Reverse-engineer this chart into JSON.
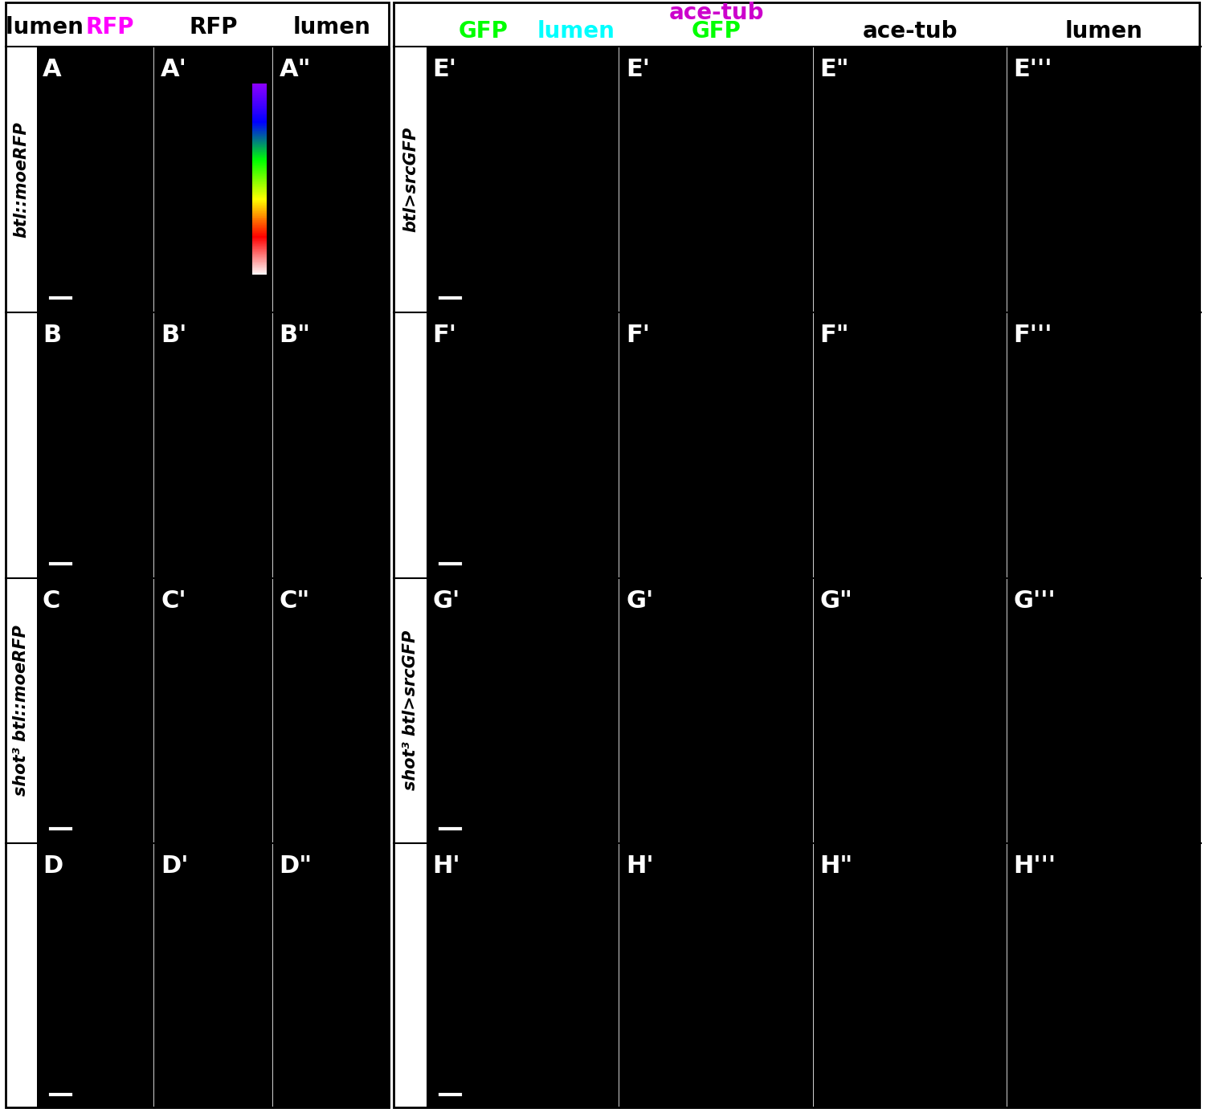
{
  "title": "",
  "background_color": "#ffffff",
  "panel_bg": "#000000",
  "border_color": "#000000",
  "label_fontsize": 18,
  "header_fontsize": 20,
  "panel_label_fontsize": 22,
  "left_col_headers": [
    "lumen RFP",
    "RFP",
    "lumen"
  ],
  "right_top_label": "ace-tub",
  "right_top_label_color": "#cc00cc",
  "right_col_headers": [
    "GFP lumen",
    "GFP",
    "ace-tub",
    "lumen"
  ],
  "left_row_labels": [
    "btl::moeRFP",
    "shot3 btl::moeRFP"
  ],
  "right_row_labels": [
    "btl>srcGFP",
    "shot3 btl>srcGFP"
  ],
  "colorbar_colors": [
    "#8b00ff",
    "#0000ff",
    "#00ff00",
    "#ffff00",
    "#ff0000",
    "#ffffff"
  ]
}
